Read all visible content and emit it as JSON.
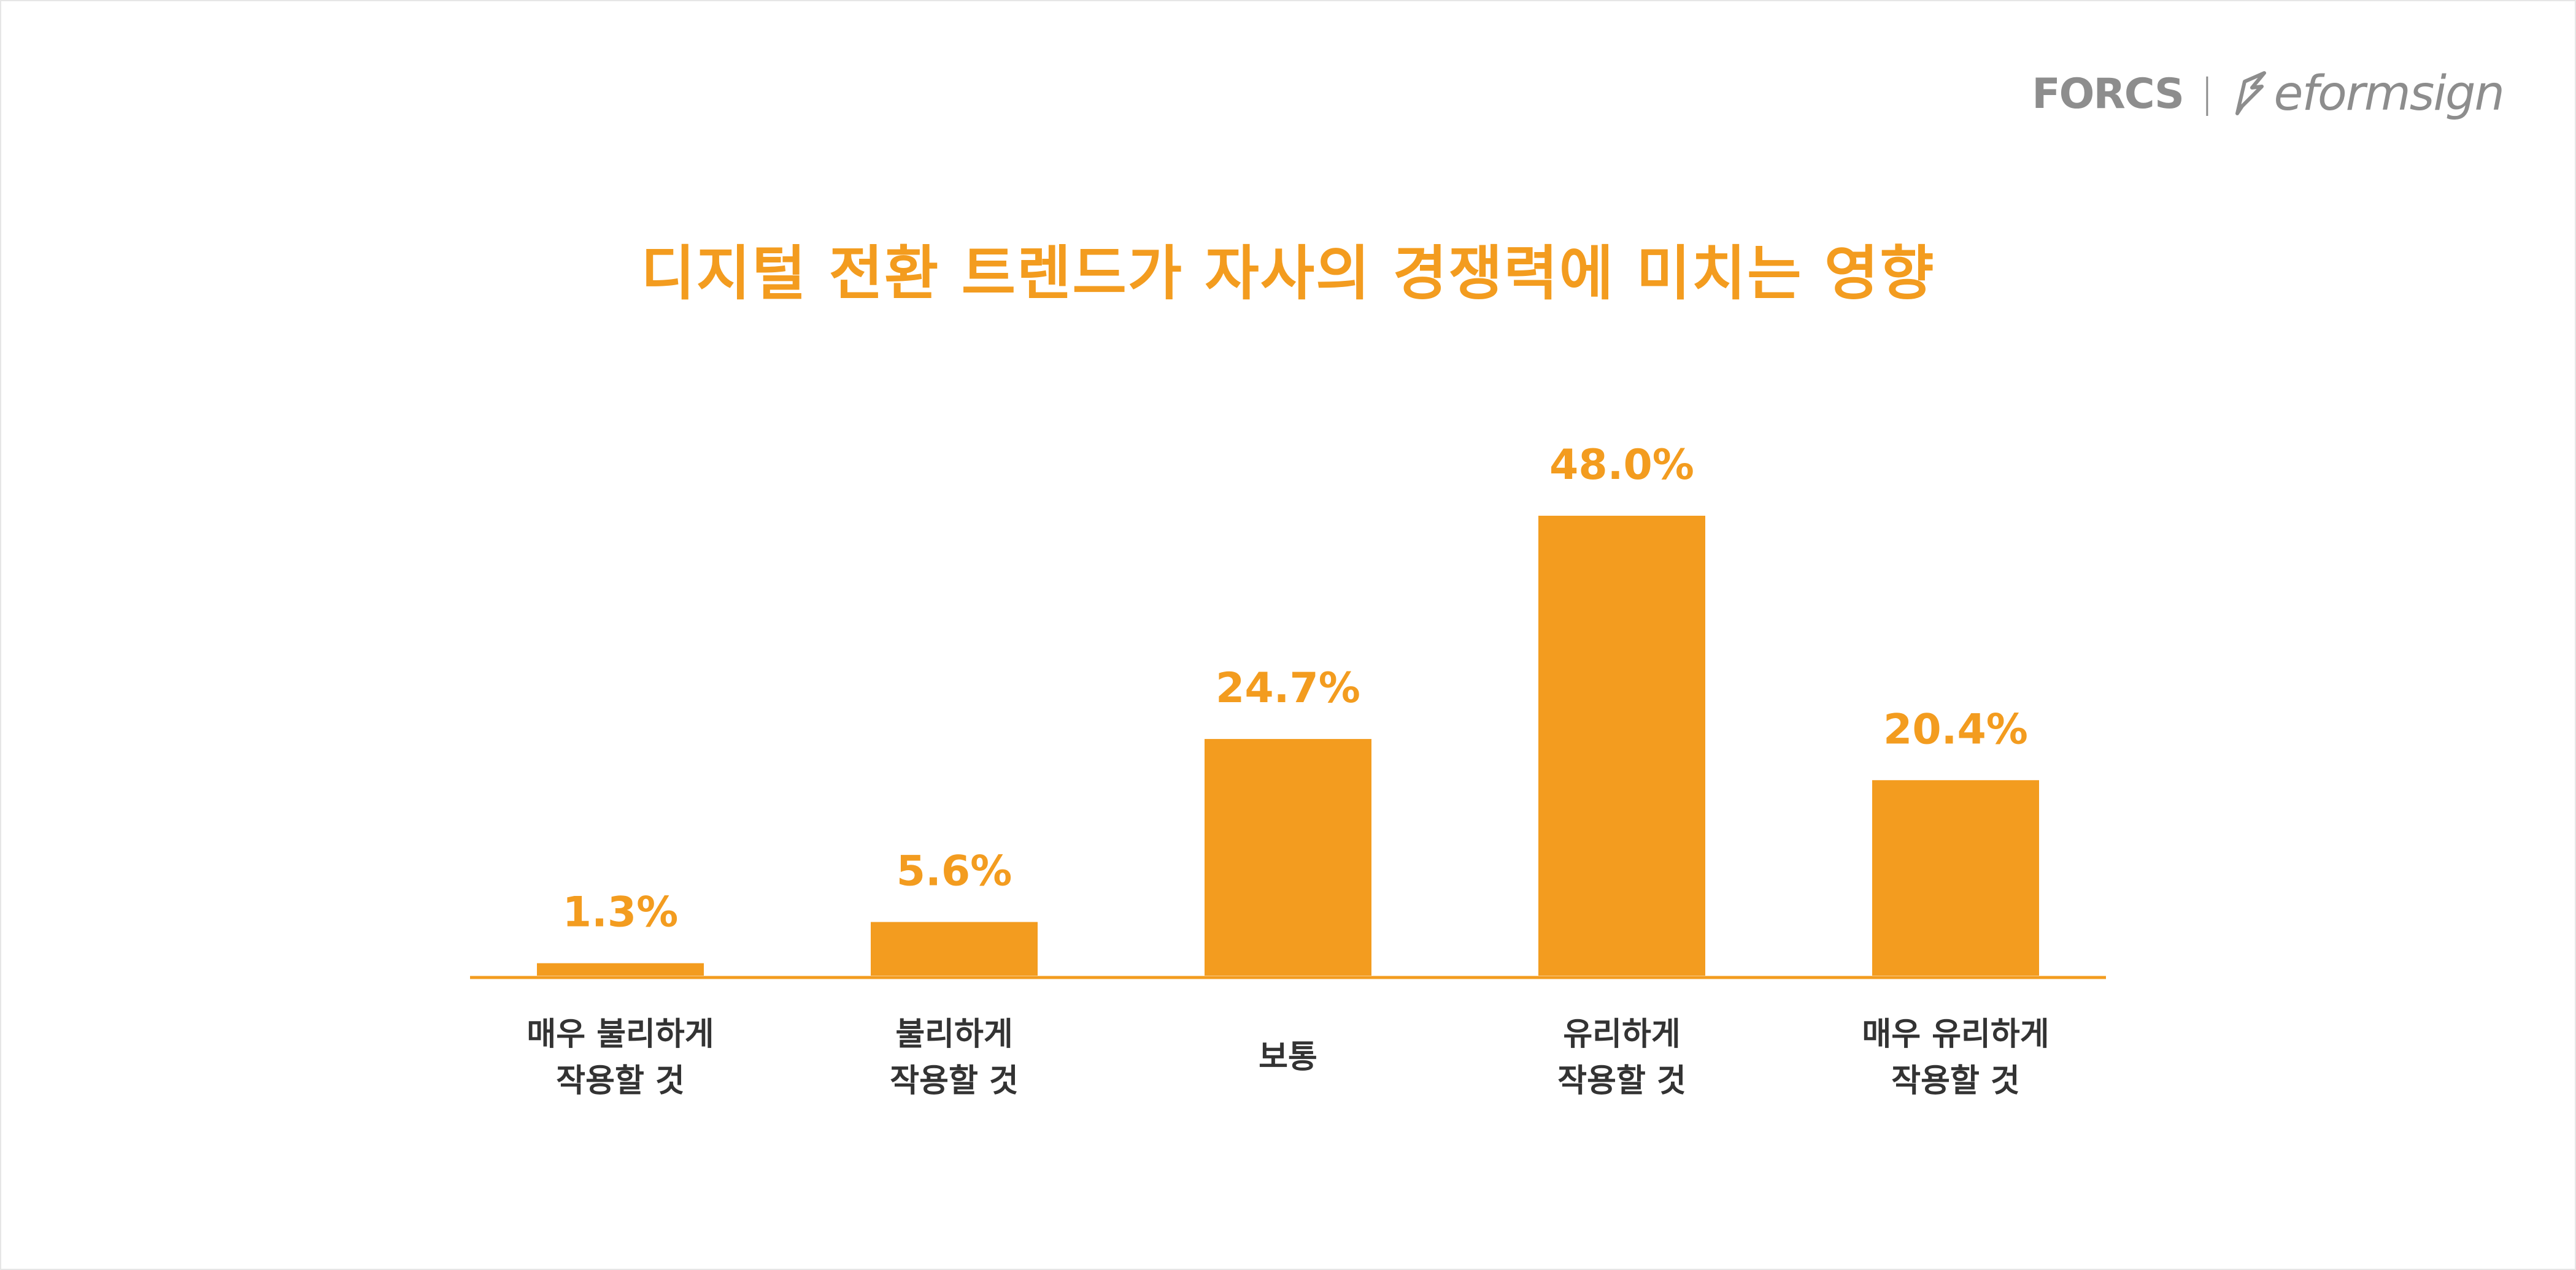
{
  "logo": {
    "forcs": "FORCS",
    "separator": "|",
    "eformsign": "eformsign"
  },
  "colors": {
    "bar": "#f39c1f",
    "title": "#f39c1f",
    "label": "#333333",
    "logo": "#8d8d8d"
  },
  "chart_data": {
    "type": "bar",
    "title": "디지털 전환 트렌드가 자사의 경쟁력에 미치는 영향",
    "categories": [
      [
        "매우 불리하게",
        "작용할 것"
      ],
      [
        "불리하게",
        "작용할 것"
      ],
      [
        "보통"
      ],
      [
        "유리하게",
        "작용할 것"
      ],
      [
        "매우 유리하게",
        "작용할 것"
      ]
    ],
    "values": [
      1.3,
      5.6,
      24.7,
      48.0,
      20.4
    ],
    "value_labels": [
      "1.3%",
      "5.6%",
      "24.7%",
      "48.0%",
      "20.4%"
    ],
    "unit": "%",
    "ylim": [
      0,
      50
    ],
    "grid": false,
    "legend": "none"
  }
}
